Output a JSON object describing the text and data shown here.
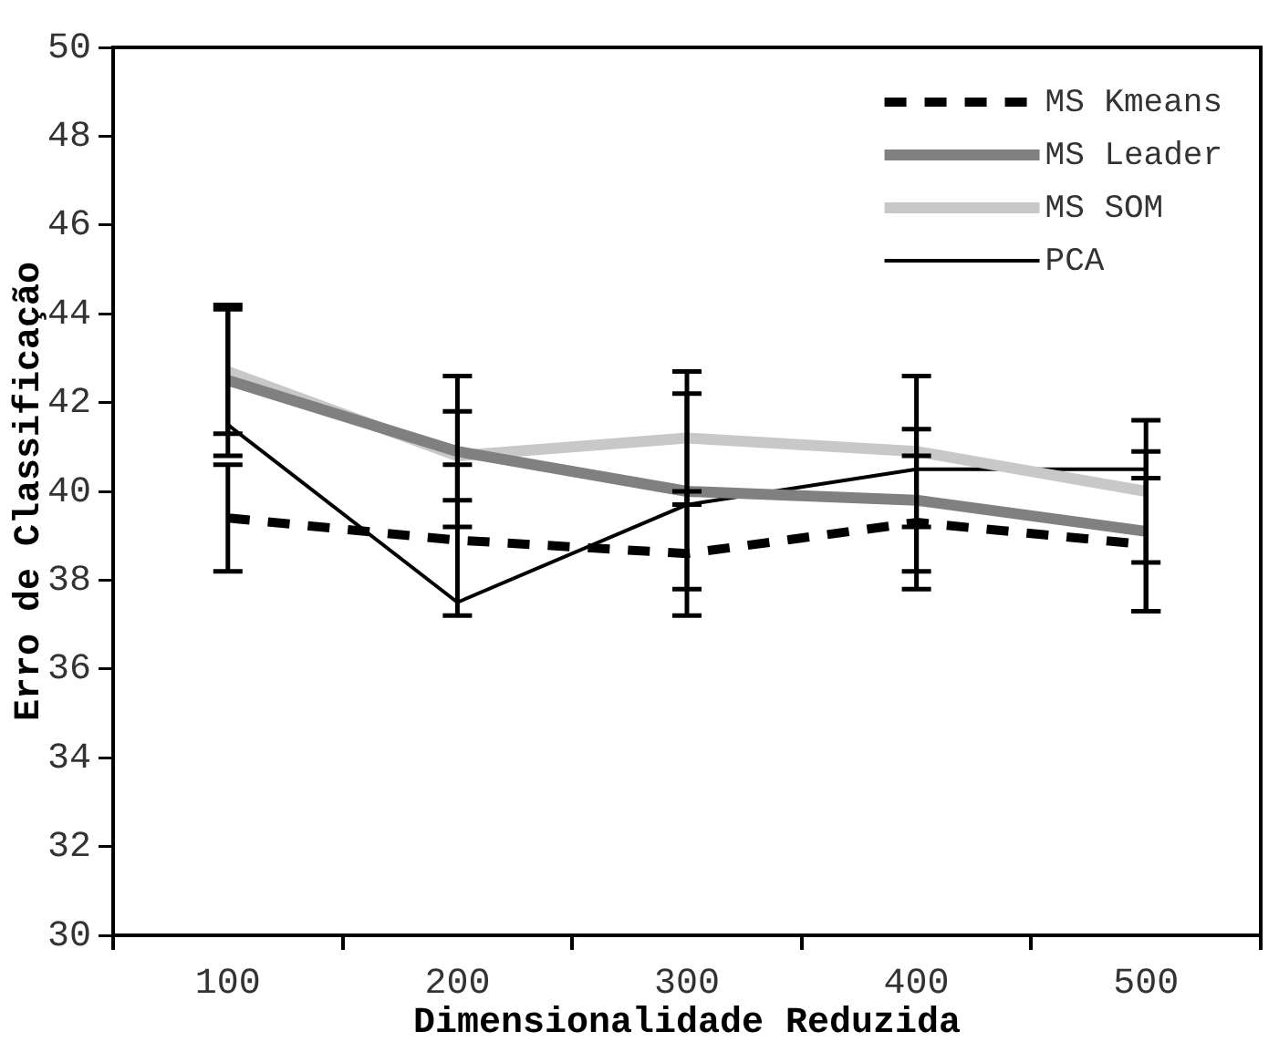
{
  "chart_data": {
    "type": "line",
    "xlabel": "Dimensionalidade Reduzida",
    "ylabel": "Erro de Classificação",
    "categories": [
      "100",
      "200",
      "300",
      "400",
      "500"
    ],
    "series": [
      {
        "name": "MS Kmeans",
        "color": "#000000",
        "line_style": "dashed",
        "values": [
          39.4,
          38.9,
          38.6,
          39.3,
          38.8
        ],
        "errors": [
          1.2,
          1.7,
          1.4,
          1.5,
          1.5
        ]
      },
      {
        "name": "MS Leader",
        "color": "#808080",
        "values": [
          42.5,
          40.9,
          40.0,
          39.8,
          39.1
        ],
        "errors": [
          1.7,
          1.7,
          2.2,
          1.6,
          1.8
        ]
      },
      {
        "name": "MS SOM",
        "color": "#c8c8c8",
        "values": [
          42.7,
          40.8,
          41.2,
          40.9,
          40.0
        ],
        "errors": [
          1.4,
          1.0,
          1.5,
          1.7,
          1.6
        ]
      },
      {
        "name": "PCA",
        "color": "#000000",
        "line_style": "solid",
        "values": [
          41.5,
          37.5,
          39.7,
          40.5,
          40.5
        ]
      }
    ],
    "ylim": [
      30,
      50
    ],
    "yticks": [
      30,
      32,
      34,
      36,
      38,
      40,
      42,
      44,
      46,
      48,
      50
    ],
    "grid": false,
    "legend": "top right",
    "marker": "none"
  }
}
